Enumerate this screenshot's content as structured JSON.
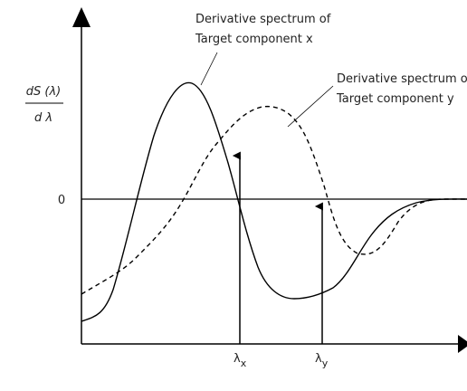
{
  "y_axis_label": {
    "numerator": "dS (λ)",
    "denominator": "d λ"
  },
  "zero_label": "0",
  "annotations": [
    {
      "line1": "Derivative spectrum of",
      "line2": "Target component x"
    },
    {
      "line1": "Derivative spectrum o",
      "line2": "Target component y"
    }
  ],
  "markers": [
    {
      "symbol": "λ",
      "subscript": "x"
    },
    {
      "symbol": "λ",
      "subscript": "y"
    }
  ]
}
